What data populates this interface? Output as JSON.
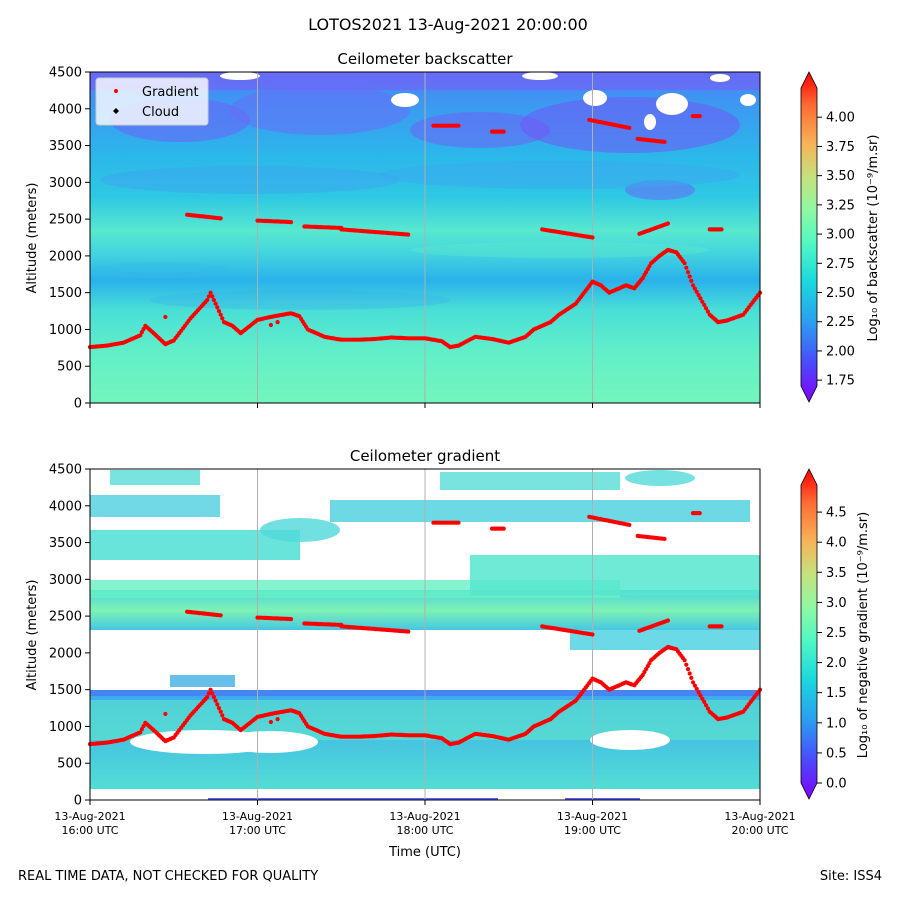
{
  "suptitle": "LOTOS2021 13-Aug-2021 20:00:00",
  "footer": {
    "left": "REAL TIME DATA, NOT CHECKED FOR QUALITY",
    "right": "Site: ISS4"
  },
  "legend": {
    "gradient_label": "Gradient",
    "cloud_label": "Cloud",
    "gradient_color": "#ff0000",
    "cloud_color": "#000000"
  },
  "chart_data": [
    {
      "type": "heatmap",
      "title": "Ceilometer backscatter",
      "xlabel": "",
      "ylabel": "Altitude (meters)",
      "ylim": [
        0,
        4500
      ],
      "yticks": [
        "0",
        "500",
        "1000",
        "1500",
        "2000",
        "2500",
        "3000",
        "3500",
        "4000",
        "4500"
      ],
      "xticks": [],
      "xlim_hours": [
        16,
        20
      ],
      "colorbar": {
        "label": "Log₁₀ of backscatter (10⁻⁹/m.sr)",
        "range": [
          1.7,
          4.25
        ],
        "ticks": [
          "1.75",
          "2.00",
          "2.25",
          "2.50",
          "2.75",
          "3.00",
          "3.25",
          "3.50",
          "3.75",
          "4.00"
        ],
        "tick_values": [
          1.75,
          2.0,
          2.25,
          2.5,
          2.75,
          3.0,
          3.25,
          3.5,
          3.75,
          4.0
        ],
        "colormap": "rainbow"
      },
      "show_legend": true
    },
    {
      "type": "heatmap",
      "title": "Ceilometer gradient",
      "xlabel": "Time (UTC)",
      "ylabel": "Altitude (meters)",
      "ylim": [
        0,
        4500
      ],
      "yticks": [
        "0",
        "500",
        "1000",
        "1500",
        "2000",
        "2500",
        "3000",
        "3500",
        "4000",
        "4500"
      ],
      "xticks": [
        "13-Aug-2021\n16:00 UTC",
        "13-Aug-2021\n17:00 UTC",
        "13-Aug-2021\n18:00 UTC",
        "13-Aug-2021\n19:00 UTC",
        "13-Aug-2021\n20:00 UTC"
      ],
      "xlim_hours": [
        16,
        20
      ],
      "colorbar": {
        "label": "Log₁₀ of negative gradient (10⁻⁹/m.sr)",
        "range": [
          0,
          4.95
        ],
        "ticks": [
          "0.0",
          "0.5",
          "1.0",
          "1.5",
          "2.0",
          "2.5",
          "3.0",
          "3.5",
          "4.0",
          "4.5"
        ],
        "tick_values": [
          0,
          0.5,
          1.0,
          1.5,
          2.0,
          2.5,
          3.0,
          3.5,
          4.0,
          4.5
        ],
        "colormap": "rainbow"
      },
      "show_legend": false
    }
  ],
  "gradient_series": {
    "name": "Gradient",
    "boundary_layer": {
      "hours": [
        16.0,
        16.1,
        16.2,
        16.3,
        16.33,
        16.38,
        16.45,
        16.5,
        16.6,
        16.7,
        16.72,
        16.75,
        16.8,
        16.85,
        16.9,
        17.0,
        17.1,
        17.2,
        17.25,
        17.3,
        17.4,
        17.5,
        17.6,
        17.7,
        17.8,
        17.9,
        18.0,
        18.1,
        18.15,
        18.2,
        18.3,
        18.4,
        18.5,
        18.6,
        18.65,
        18.75,
        18.8,
        18.9,
        18.95,
        19.0,
        19.05,
        19.1,
        19.2,
        19.25,
        19.3,
        19.35,
        19.4,
        19.45,
        19.5,
        19.55,
        19.6,
        19.7,
        19.75,
        19.8,
        19.9,
        20.0
      ],
      "altitudes": [
        760,
        780,
        820,
        920,
        1050,
        950,
        800,
        850,
        1150,
        1400,
        1500,
        1350,
        1100,
        1050,
        950,
        1130,
        1180,
        1220,
        1180,
        1000,
        900,
        860,
        860,
        870,
        890,
        880,
        880,
        840,
        760,
        780,
        900,
        870,
        820,
        900,
        1000,
        1100,
        1200,
        1350,
        1500,
        1650,
        1600,
        1500,
        1600,
        1560,
        1700,
        1900,
        2000,
        2080,
        2050,
        1900,
        1600,
        1200,
        1100,
        1120,
        1200,
        1500
      ]
    },
    "upper_layers": [
      {
        "hours": [
          16.58,
          16.78
        ],
        "altitudes": [
          2560,
          2510
        ]
      },
      {
        "hours": [
          17.0,
          17.2
        ],
        "altitudes": [
          2480,
          2460
        ]
      },
      {
        "hours": [
          17.28,
          17.5
        ],
        "altitudes": [
          2400,
          2380
        ]
      },
      {
        "hours": [
          17.5,
          17.9
        ],
        "altitudes": [
          2360,
          2290
        ]
      },
      {
        "hours": [
          18.7,
          19.0
        ],
        "altitudes": [
          2360,
          2250
        ]
      },
      {
        "hours": [
          19.28,
          19.45
        ],
        "altitudes": [
          2300,
          2440
        ]
      },
      {
        "hours": [
          19.7,
          19.77
        ],
        "altitudes": [
          2360,
          2360
        ]
      },
      {
        "hours": [
          18.05,
          18.2
        ],
        "altitudes": [
          3770,
          3770
        ]
      },
      {
        "hours": [
          18.4,
          18.47
        ],
        "altitudes": [
          3690,
          3690
        ]
      },
      {
        "hours": [
          18.98,
          19.22
        ],
        "altitudes": [
          3850,
          3740
        ]
      },
      {
        "hours": [
          19.27,
          19.43
        ],
        "altitudes": [
          3590,
          3550
        ]
      },
      {
        "hours": [
          19.6,
          19.64
        ],
        "altitudes": [
          3900,
          3900
        ]
      }
    ],
    "extra_points": [
      {
        "hour": 16.45,
        "altitude": 1170
      },
      {
        "hour": 17.08,
        "altitude": 1060
      },
      {
        "hour": 17.12,
        "altitude": 1100
      }
    ]
  }
}
